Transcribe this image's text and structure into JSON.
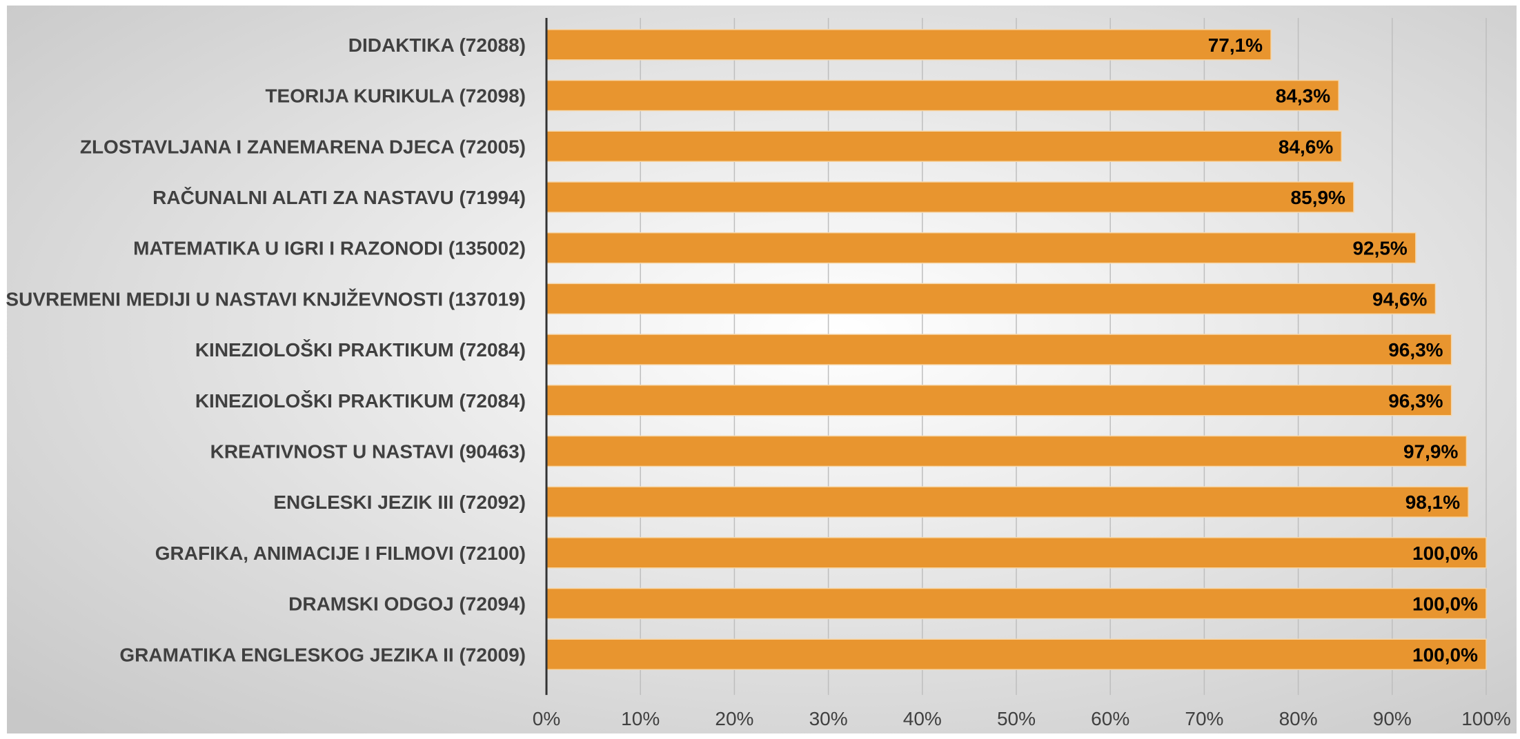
{
  "colors": {
    "bar": "#E8952F",
    "bar_stroke": "#F6D6A8",
    "axis": "#333333",
    "grid": "#BEBEBE",
    "text": "#404040",
    "background_center": "#FFFFFF",
    "background_edge": "#C8C8C8"
  },
  "chart_data": {
    "type": "bar",
    "orientation": "horizontal",
    "title": "",
    "xlabel": "",
    "ylabel": "",
    "xlim": [
      0,
      100
    ],
    "grid": true,
    "legend": "none",
    "categories": [
      "DIDAKTIKA (72088)",
      "TEORIJA KURIKULA (72098)",
      "ZLOSTAVLJANA I ZANEMARENA DJECA (72005)",
      "RAČUNALNI ALATI ZA NASTAVU (71994)",
      "MATEMATIKA U IGRI I RAZONODI (135002)",
      "SUVREMENI MEDIJI U NASTAVI KNJIŽEVNOSTI (137019)",
      "KINEZIOLOŠKI PRAKTIKUM (72084)",
      "KINEZIOLOŠKI PRAKTIKUM (72084)",
      "KREATIVNOST U NASTAVI (90463)",
      "ENGLESKI JEZIK III (72092)",
      "GRAFIKA, ANIMACIJE I FILMOVI (72100)",
      "DRAMSKI ODGOJ (72094)",
      "GRAMATIKA ENGLESKOG JEZIKA II (72009)"
    ],
    "values": [
      77.1,
      84.3,
      84.6,
      85.9,
      92.5,
      94.6,
      96.3,
      96.3,
      97.9,
      98.1,
      100.0,
      100.0,
      100.0
    ],
    "data_labels": [
      "77,1%",
      "84,3%",
      "84,6%",
      "85,9%",
      "92,5%",
      "94,6%",
      "96,3%",
      "96,3%",
      "97,9%",
      "98,1%",
      "100,0%",
      "100,0%",
      "100,0%"
    ],
    "ticks": [
      0,
      10,
      20,
      30,
      40,
      50,
      60,
      70,
      80,
      90,
      100
    ],
    "tick_labels": [
      "0%",
      "10%",
      "20%",
      "30%",
      "40%",
      "50%",
      "60%",
      "70%",
      "80%",
      "90%",
      "100%"
    ]
  }
}
